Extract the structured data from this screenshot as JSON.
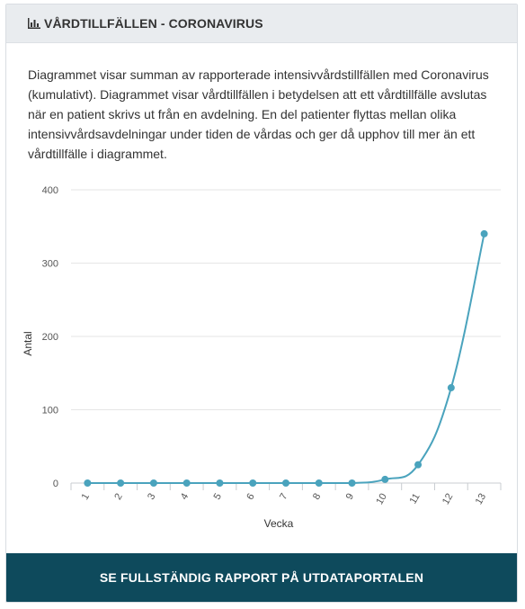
{
  "header": {
    "title": "VÅRDTILLFÄLLEN - CORONAVIRUS",
    "icon": "bar-chart-icon"
  },
  "description": "Diagrammet visar summan av rapporterade intensivvårdstillfällen med Coronavirus (kumulativt). Diagrammet visar vårdtillfällen i betydelsen att ett vårdtillfälle avslutas när en patient skrivs ut från en avdelning. En del patienter flyttas mellan olika intensivvårdsavdelningar under tiden de vårdas och ger då upphov till mer än ett vårdtillfälle i diagrammet.",
  "chart_data": {
    "type": "line",
    "title": "",
    "xlabel": "Vecka",
    "ylabel": "Antal",
    "x": [
      "1",
      "2",
      "3",
      "4",
      "5",
      "6",
      "7",
      "8",
      "9",
      "10",
      "11",
      "12",
      "13"
    ],
    "series": [
      {
        "values": [
          0,
          0,
          0,
          0,
          0,
          0,
          0,
          0,
          0,
          5,
          25,
          130,
          340
        ]
      }
    ],
    "ylim": [
      0,
      400
    ],
    "yticks": [
      0,
      100,
      200,
      300,
      400
    ],
    "grid": true,
    "color": "#4aa3bd"
  },
  "footer": {
    "button_label": "SE FULLSTÄNDIG RAPPORT PÅ UTDATAPORTALEN"
  }
}
